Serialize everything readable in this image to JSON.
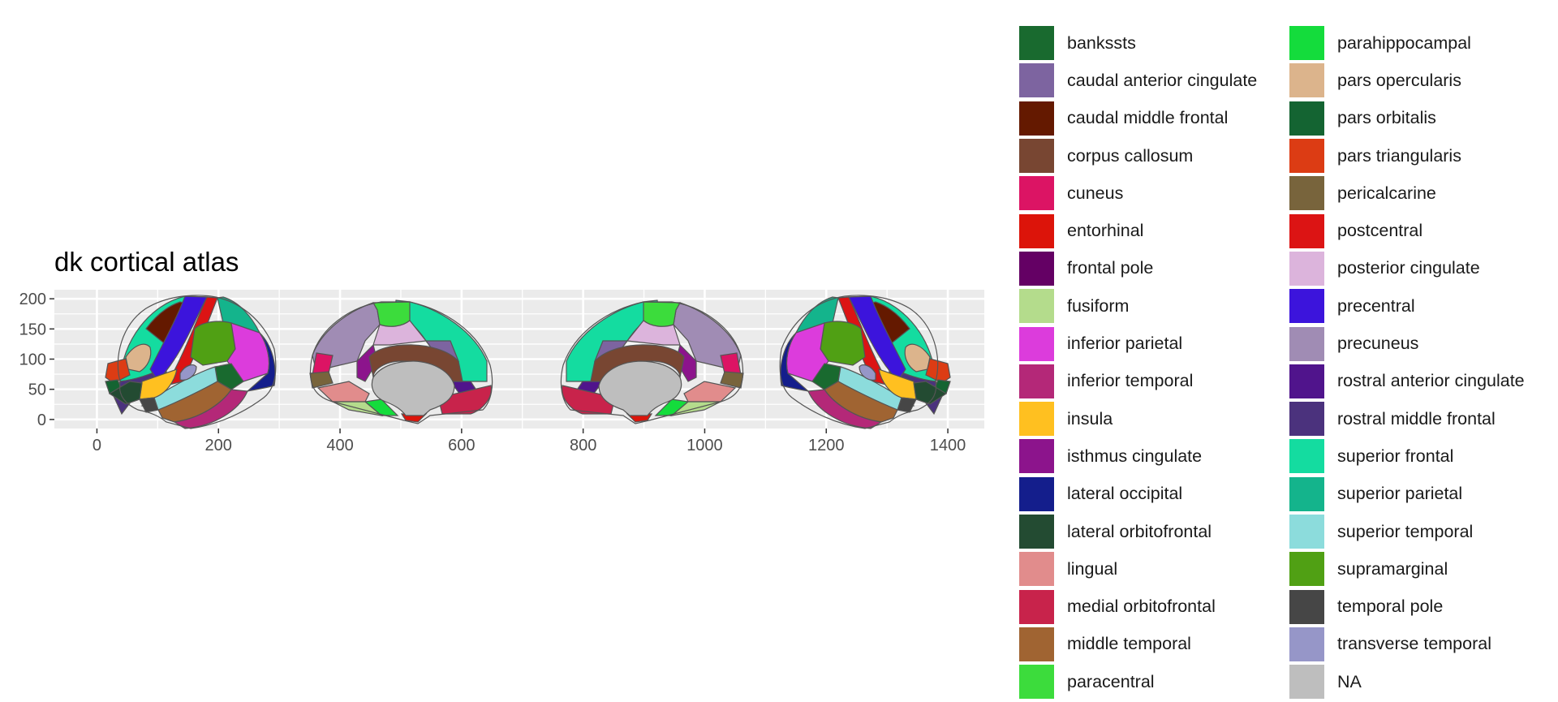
{
  "chart_data": {
    "type": "map",
    "title": "dk cortical atlas",
    "xlabel": "",
    "ylabel": "",
    "xlim": [
      -70,
      1460
    ],
    "ylim": [
      -15,
      215
    ],
    "xticks": [
      0,
      200,
      400,
      600,
      800,
      1000,
      1200,
      1400
    ],
    "yticks": [
      0,
      50,
      100,
      150,
      200
    ],
    "grid": true,
    "panel_background": "#ebebeb",
    "legend_position": "right",
    "legend_columns": 2,
    "legend": [
      {
        "name": "bankssts",
        "color": "#196A2F"
      },
      {
        "name": "caudal anterior cingulate",
        "color": "#7D64A0"
      },
      {
        "name": "caudal middle frontal",
        "color": "#641900"
      },
      {
        "name": "corpus callosum",
        "color": "#784632"
      },
      {
        "name": "cuneus",
        "color": "#DC1464"
      },
      {
        "name": "entorhinal",
        "color": "#DC140A"
      },
      {
        "name": "frontal pole",
        "color": "#640064"
      },
      {
        "name": "fusiform",
        "color": "#B4DC8C"
      },
      {
        "name": "inferior parietal",
        "color": "#DC3CDC"
      },
      {
        "name": "inferior temporal",
        "color": "#B42878"
      },
      {
        "name": "insula",
        "color": "#FFC020"
      },
      {
        "name": "isthmus cingulate",
        "color": "#8C148C"
      },
      {
        "name": "lateral occipital",
        "color": "#141E8C"
      },
      {
        "name": "lateral orbitofrontal",
        "color": "#234B32"
      },
      {
        "name": "lingual",
        "color": "#E18C8C"
      },
      {
        "name": "medial orbitofrontal",
        "color": "#C8234B"
      },
      {
        "name": "middle temporal",
        "color": "#A06432"
      },
      {
        "name": "paracentral",
        "color": "#3CDC3C"
      },
      {
        "name": "parahippocampal",
        "color": "#14DC3C"
      },
      {
        "name": "pars opercularis",
        "color": "#DCB48C"
      },
      {
        "name": "pars orbitalis",
        "color": "#146432"
      },
      {
        "name": "pars triangularis",
        "color": "#DC3C14"
      },
      {
        "name": "pericalcarine",
        "color": "#78643C"
      },
      {
        "name": "postcentral",
        "color": "#DC1414"
      },
      {
        "name": "posterior cingulate",
        "color": "#DCB4DC"
      },
      {
        "name": "precentral",
        "color": "#3C14DC"
      },
      {
        "name": "precuneus",
        "color": "#A08CB4"
      },
      {
        "name": "rostral anterior cingulate",
        "color": "#50148C"
      },
      {
        "name": "rostral middle frontal",
        "color": "#4B327D"
      },
      {
        "name": "superior frontal",
        "color": "#14DCA0"
      },
      {
        "name": "superior parietal",
        "color": "#14B48C"
      },
      {
        "name": "superior temporal",
        "color": "#8CDCDC"
      },
      {
        "name": "supramarginal",
        "color": "#50A014"
      },
      {
        "name": "temporal pole",
        "color": "#464646"
      },
      {
        "name": "transverse temporal",
        "color": "#9696C8"
      },
      {
        "name": "NA",
        "color": "#BEBEBE"
      }
    ],
    "views": [
      {
        "name": "left lateral",
        "x": [
          30,
          295
        ],
        "y": [
          0,
          205
        ]
      },
      {
        "name": "left medial",
        "x": [
          350,
          655
        ],
        "y": [
          0,
          200
        ]
      },
      {
        "name": "right medial",
        "x": [
          750,
          1055
        ],
        "y": [
          0,
          200
        ]
      },
      {
        "name": "right lateral",
        "x": [
          1110,
          1375
        ],
        "y": [
          0,
          205
        ]
      }
    ]
  }
}
